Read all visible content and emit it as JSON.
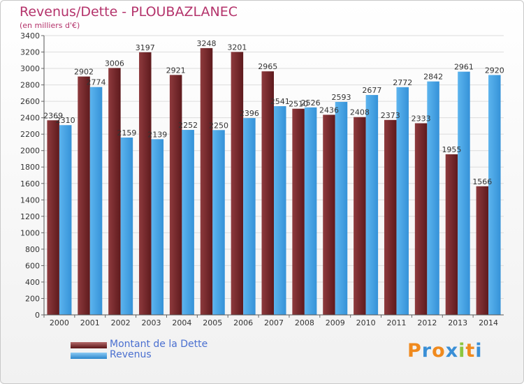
{
  "title": "Revenus/Dette - PLOUBAZLANEC",
  "subtitle": "(en milliers d'€)",
  "colors": {
    "dette": "#7a2b2e",
    "revenus": "#4aa4e4",
    "title": "#b4336b",
    "legend_text": "#4a6fd0"
  },
  "legend": {
    "dette_label": "Montant de la Dette",
    "revenus_label": "Revenus"
  },
  "logo": {
    "text": "Proxiti",
    "letters": [
      "P",
      "r",
      "o",
      "x",
      "i",
      "t",
      "i"
    ],
    "colors": [
      "#f08a1e",
      "#3a8fd6",
      "#f08a1e",
      "#3a8fd6",
      "#8cc63f",
      "#f08a1e",
      "#3a8fd6"
    ]
  },
  "chart_data": {
    "type": "bar",
    "categories": [
      "2000",
      "2001",
      "2002",
      "2003",
      "2004",
      "2005",
      "2006",
      "2007",
      "2008",
      "2009",
      "2010",
      "2011",
      "2012",
      "2013",
      "2014"
    ],
    "series": [
      {
        "name": "Montant de la Dette",
        "values": [
          2369,
          2902,
          3006,
          3197,
          2921,
          3248,
          3201,
          2965,
          2510,
          2436,
          2408,
          2373,
          2333,
          1955,
          1566
        ],
        "labels": [
          "2369",
          "2902",
          "3006",
          "3197",
          "2921",
          "3248",
          "3201",
          "2965",
          "2510",
          "2436",
          "2408",
          "2373",
          "2333",
          "1955",
          "1566"
        ]
      },
      {
        "name": "Revenus",
        "values": [
          2310,
          2774,
          2159,
          2139,
          2252,
          2250,
          2396,
          2541,
          2526,
          2593,
          2677,
          2772,
          2842,
          2961,
          2920
        ],
        "labels": [
          "2310",
          "2774",
          "2159",
          "2139",
          "2252",
          "2250",
          "2396",
          "2541",
          "2526",
          "2593",
          "2677",
          "2772",
          "2842",
          "2961",
          "2920"
        ]
      }
    ],
    "ylim": [
      0,
      3400
    ],
    "yticks": [
      "0",
      "200",
      "400",
      "600",
      "800",
      "1000",
      "1200",
      "1400",
      "1600",
      "1800",
      "2000",
      "2200",
      "2400",
      "2600",
      "2800",
      "3000",
      "3200",
      "3400"
    ],
    "grid": true,
    "legend_position": "bottom-left"
  }
}
